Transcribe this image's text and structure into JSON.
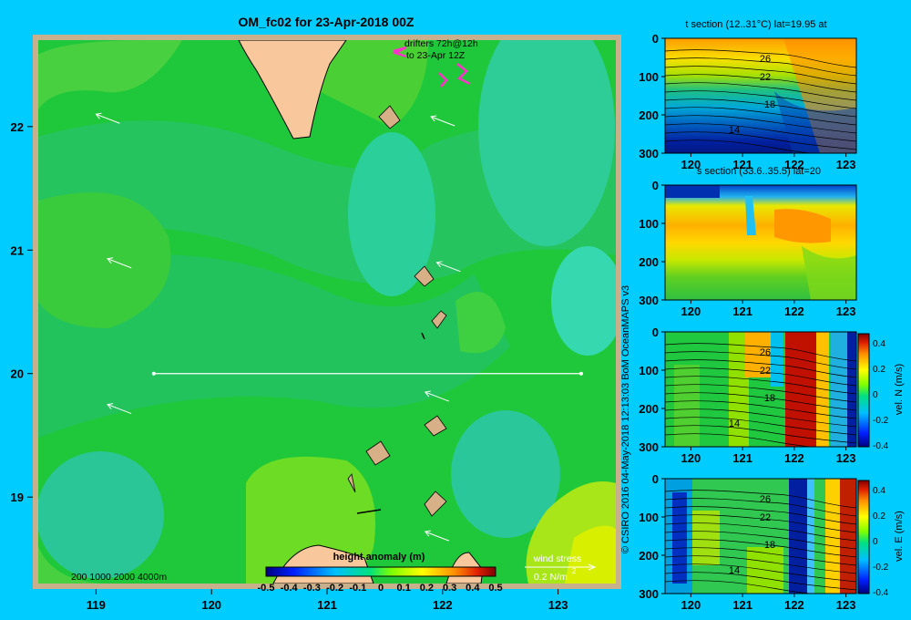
{
  "title": "OM_fc02 for 23-Apr-2018 00Z",
  "credit": "© CSIRO 2016   04-May-2018 12:13:03 BoM OceanMAPS v3",
  "drifters_label_line1": "drifters 72h@12h",
  "drifters_label_line2": "to 23-Apr 12Z",
  "depth_legend": "200  1000  2000  4000m",
  "wind_stress_label": "wind stress",
  "wind_stress_value": "0.2 N/m",
  "wind_stress_exponent": "2",
  "colors": {
    "background": "#00ccff",
    "land": "#f8c89c",
    "island": "#d8b088",
    "frame": "#c8b08c"
  },
  "chart_data": [
    {
      "type": "heatmap",
      "name": "height anomaly map",
      "colorbar_label": "height anomaly (m)",
      "colorbar_ticks": [
        "-0.5",
        "-0.4",
        "-0.3",
        "-0.2",
        "-0.1",
        "0",
        "0.1",
        "0.2",
        "0.3",
        "0.4",
        "0.5"
      ],
      "xlim": [
        118.5,
        123.5
      ],
      "ylim": [
        18.3,
        22.7
      ],
      "x_ticks": [
        "119",
        "120",
        "121",
        "122",
        "123"
      ],
      "y_ticks": [
        "19",
        "20",
        "21",
        "22"
      ],
      "section_line": {
        "lat": 20,
        "lon": [
          119.5,
          123.2
        ]
      },
      "wind_vectors": [
        {
          "lon": 119.0,
          "lat": 22.1
        },
        {
          "lon": 121.9,
          "lat": 22.08
        },
        {
          "lon": 119.1,
          "lat": 20.93
        },
        {
          "lon": 121.95,
          "lat": 20.9
        },
        {
          "lon": 119.1,
          "lat": 19.75
        },
        {
          "lon": 121.85,
          "lat": 19.85
        },
        {
          "lon": 121.85,
          "lat": 18.72
        }
      ]
    },
    {
      "type": "heatmap",
      "title": "t section (12..31°C) lat=19.95 at",
      "xlim": [
        119.5,
        123.2
      ],
      "ylim": [
        300,
        0
      ],
      "x_ticks": [
        "120",
        "121",
        "122",
        "123"
      ],
      "y_ticks": [
        "0",
        "100",
        "200",
        "300"
      ],
      "contour_labels": [
        "26",
        "22",
        "18",
        "14"
      ]
    },
    {
      "type": "heatmap",
      "title": "s section (33.6..35.5) lat=20",
      "xlim": [
        119.5,
        123.2
      ],
      "ylim": [
        300,
        0
      ],
      "x_ticks": [
        "120",
        "121",
        "122",
        "123"
      ],
      "y_ticks": [
        "0",
        "100",
        "200",
        "300"
      ]
    },
    {
      "type": "heatmap",
      "colorbar_label": "vel. N (m/s)",
      "colorbar_ticks": [
        "0.4",
        "0.2",
        "0",
        "-0.2",
        "-0.4"
      ],
      "xlim": [
        119.5,
        123.2
      ],
      "ylim": [
        300,
        0
      ],
      "x_ticks": [
        "120",
        "121",
        "122",
        "123"
      ],
      "y_ticks": [
        "0",
        "100",
        "200",
        "300"
      ],
      "contour_labels": [
        "26",
        "22",
        "18",
        "14"
      ]
    },
    {
      "type": "heatmap",
      "colorbar_label": "vel. E (m/s)",
      "colorbar_ticks": [
        "0.4",
        "0.2",
        "0",
        "-0.2",
        "-0.4"
      ],
      "xlim": [
        119.5,
        123.2
      ],
      "ylim": [
        300,
        0
      ],
      "x_ticks": [
        "120",
        "121",
        "122",
        "123"
      ],
      "y_ticks": [
        "0",
        "100",
        "200",
        "300"
      ],
      "contour_labels": [
        "26",
        "22",
        "18",
        "14"
      ]
    }
  ]
}
